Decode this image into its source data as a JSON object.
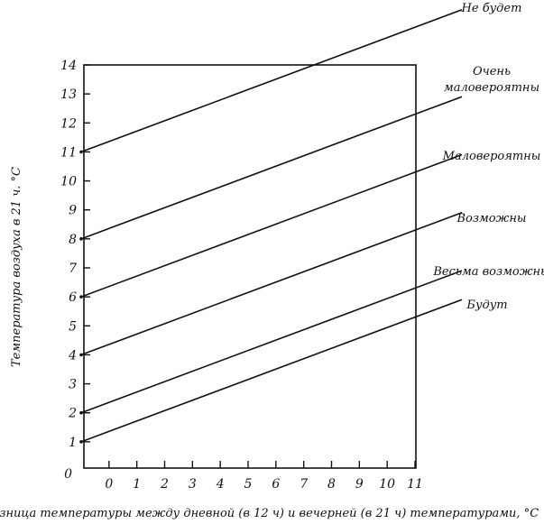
{
  "chart_data": {
    "type": "line",
    "xlabel": "Разница температуры между дневной (в 12 ч) и вечерней (в 21 ч) температурами, °С",
    "ylabel": "Температура воздуха в 21 ч. °С",
    "xlim": [
      -1,
      11
    ],
    "ylim": [
      0,
      14
    ],
    "x_ticks": [
      "0",
      "1",
      "2",
      "3",
      "4",
      "5",
      "6",
      "7",
      "8",
      "9",
      "10",
      "11"
    ],
    "y_ticks": [
      "0",
      "1",
      "2",
      "3",
      "4",
      "5",
      "6",
      "7",
      "8",
      "9",
      "10",
      "11",
      "12",
      "13",
      "14"
    ],
    "grid": false,
    "series": [
      {
        "name": "Не будет",
        "x": [
          -1,
          11
        ],
        "y": [
          11,
          15.3
        ]
      },
      {
        "name": "Очень маловероятны",
        "x": [
          -1,
          11
        ],
        "y": [
          8,
          12.3
        ]
      },
      {
        "name": "Маловероятны",
        "x": [
          -1,
          11
        ],
        "y": [
          6,
          10.3
        ]
      },
      {
        "name": "Возможны",
        "x": [
          -1,
          11
        ],
        "y": [
          4,
          8.3
        ]
      },
      {
        "name": "Весьма возможны",
        "x": [
          -1,
          11
        ],
        "y": [
          2,
          6.3
        ]
      },
      {
        "name": "Будут",
        "x": [
          -1,
          11
        ],
        "y": [
          1,
          5.3
        ]
      }
    ],
    "line_labels": [
      {
        "lines": [
          "Не будет"
        ]
      },
      {
        "lines": [
          "Очень",
          "маловероятны"
        ]
      },
      {
        "lines": [
          "Маловероятны"
        ]
      },
      {
        "lines": [
          "Возможны"
        ]
      },
      {
        "lines": [
          "Весьма возможны"
        ]
      },
      {
        "lines": [
          "Будут"
        ]
      }
    ]
  }
}
